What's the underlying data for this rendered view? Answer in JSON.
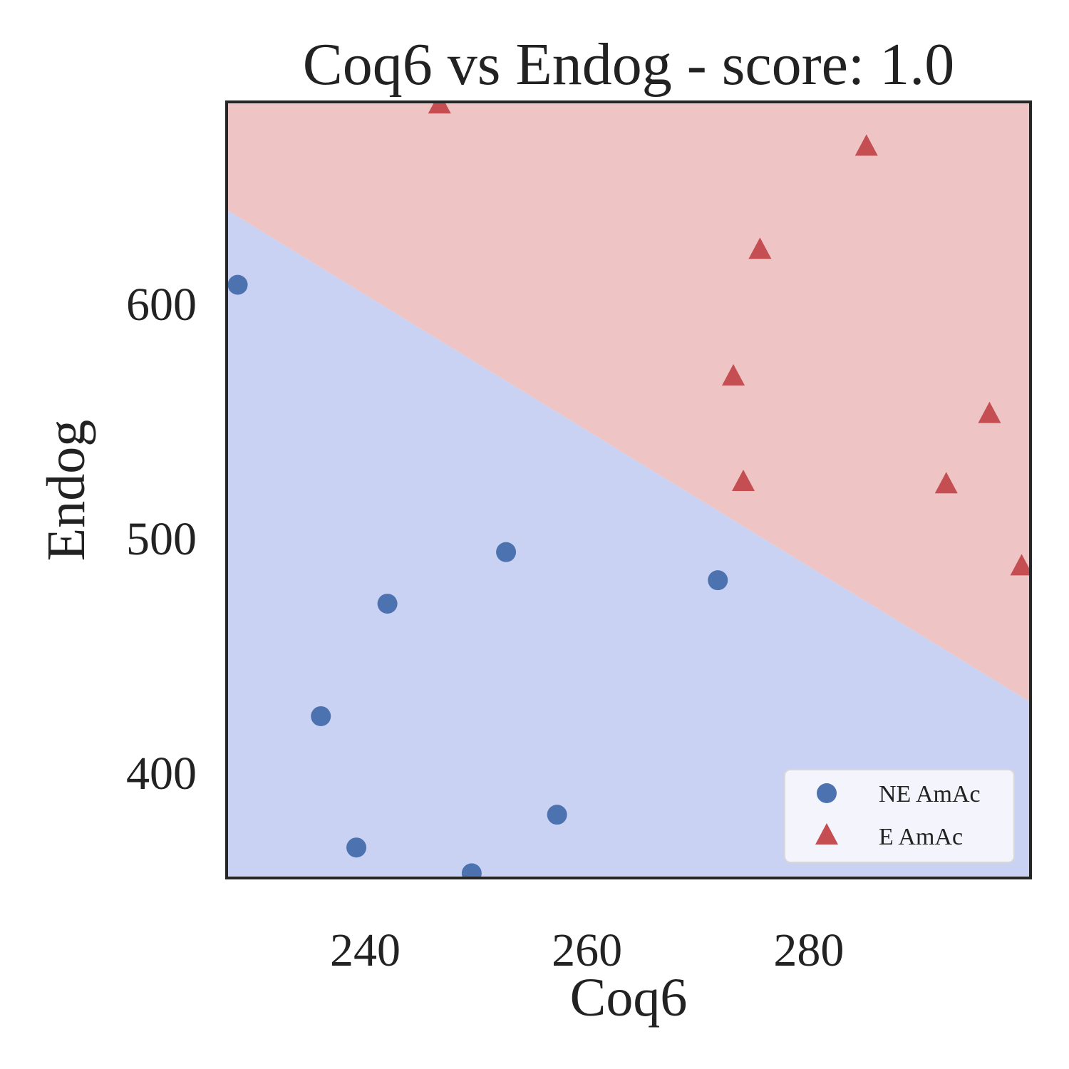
{
  "chart_data": {
    "type": "scatter",
    "title": "Coq6 vs Endog - score: 1.0",
    "xlabel": "Coq6",
    "ylabel": "Endog",
    "xlim": [
      227.5,
      300
    ],
    "ylim": [
      355,
      686
    ],
    "x_ticks": [
      240,
      260,
      280
    ],
    "y_ticks": [
      400,
      500,
      600
    ],
    "grid": false,
    "legend_position": "bottom-right",
    "decision_boundary": {
      "points": [
        [
          227.5,
          640
        ],
        [
          300,
          430
        ]
      ],
      "above_color": "#eec4c4",
      "below_color": "#c9d2f2"
    },
    "series": [
      {
        "name": "NE AmAc",
        "marker": "circle",
        "color": "#4c72b0",
        "points": [
          [
            228.5,
            608
          ],
          [
            252.7,
            494
          ],
          [
            242.0,
            472
          ],
          [
            271.8,
            482
          ],
          [
            236.0,
            424
          ],
          [
            257.3,
            382
          ],
          [
            239.2,
            368
          ],
          [
            249.6,
            357
          ]
        ]
      },
      {
        "name": "E AmAc",
        "marker": "triangle",
        "color": "#c44e52",
        "points": [
          [
            246.7,
            685
          ],
          [
            285.2,
            667
          ],
          [
            275.6,
            623
          ],
          [
            273.2,
            569
          ],
          [
            296.3,
            553
          ],
          [
            274.1,
            524
          ],
          [
            292.4,
            523
          ],
          [
            299.2,
            488
          ]
        ]
      }
    ]
  }
}
